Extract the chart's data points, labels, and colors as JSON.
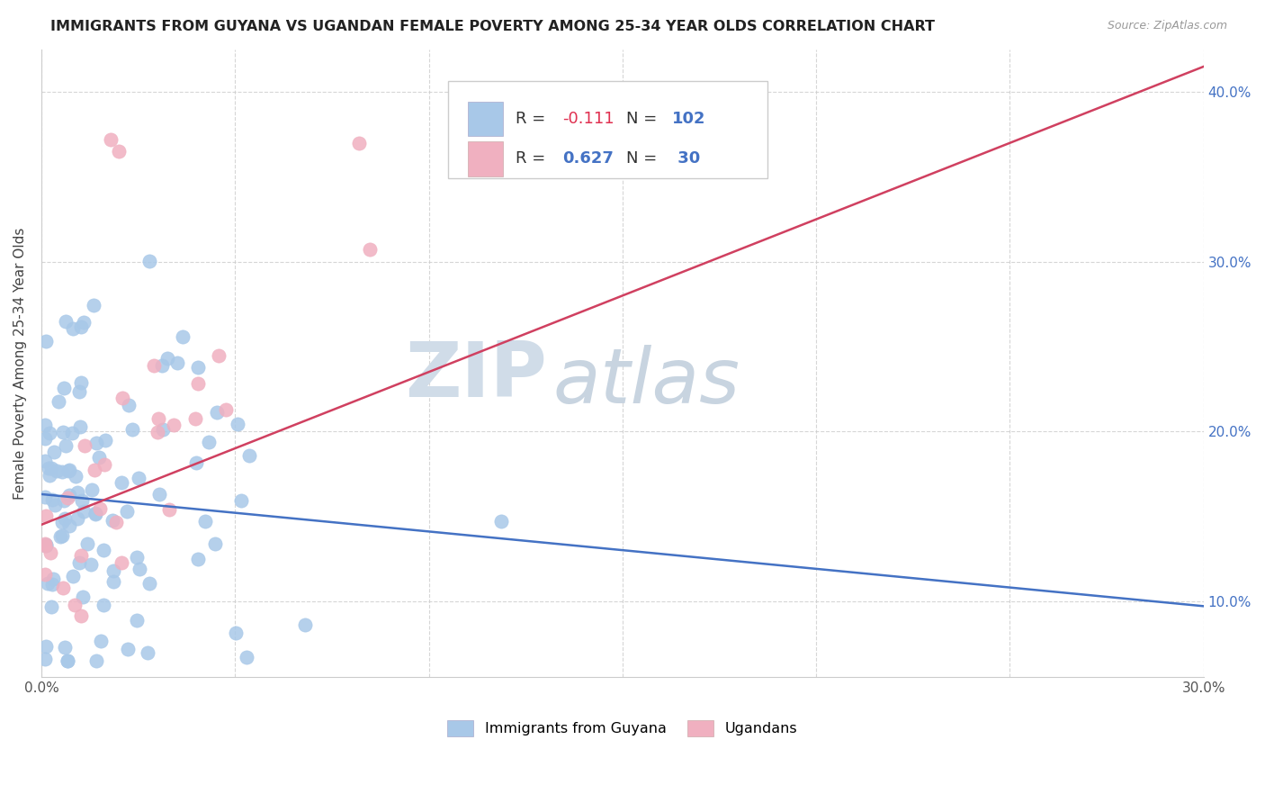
{
  "title": "IMMIGRANTS FROM GUYANA VS UGANDAN FEMALE POVERTY AMONG 25-34 YEAR OLDS CORRELATION CHART",
  "source": "Source: ZipAtlas.com",
  "ylabel": "Female Poverty Among 25-34 Year Olds",
  "xlim": [
    0.0,
    0.3
  ],
  "ylim": [
    0.055,
    0.425
  ],
  "xticks": [
    0.0,
    0.05,
    0.1,
    0.15,
    0.2,
    0.25,
    0.3
  ],
  "yticks": [
    0.1,
    0.2,
    0.3,
    0.4
  ],
  "right_ytick_labels": [
    "10.0%",
    "20.0%",
    "30.0%",
    "40.0%"
  ],
  "xtick_labels": [
    "0.0%",
    "",
    "",
    "",
    "",
    "",
    "30.0%"
  ],
  "blue_color": "#a8c8e8",
  "pink_color": "#f0b0c0",
  "blue_line_color": "#4472c4",
  "pink_line_color": "#d04060",
  "R_blue": -0.111,
  "N_blue": 102,
  "R_pink": 0.627,
  "N_pink": 30,
  "legend_label_blue": "Immigrants from Guyana",
  "legend_label_pink": "Ugandans",
  "watermark_ZIP": "ZIP",
  "watermark_atlas": "atlas",
  "blue_seed": 77,
  "pink_seed": 55
}
